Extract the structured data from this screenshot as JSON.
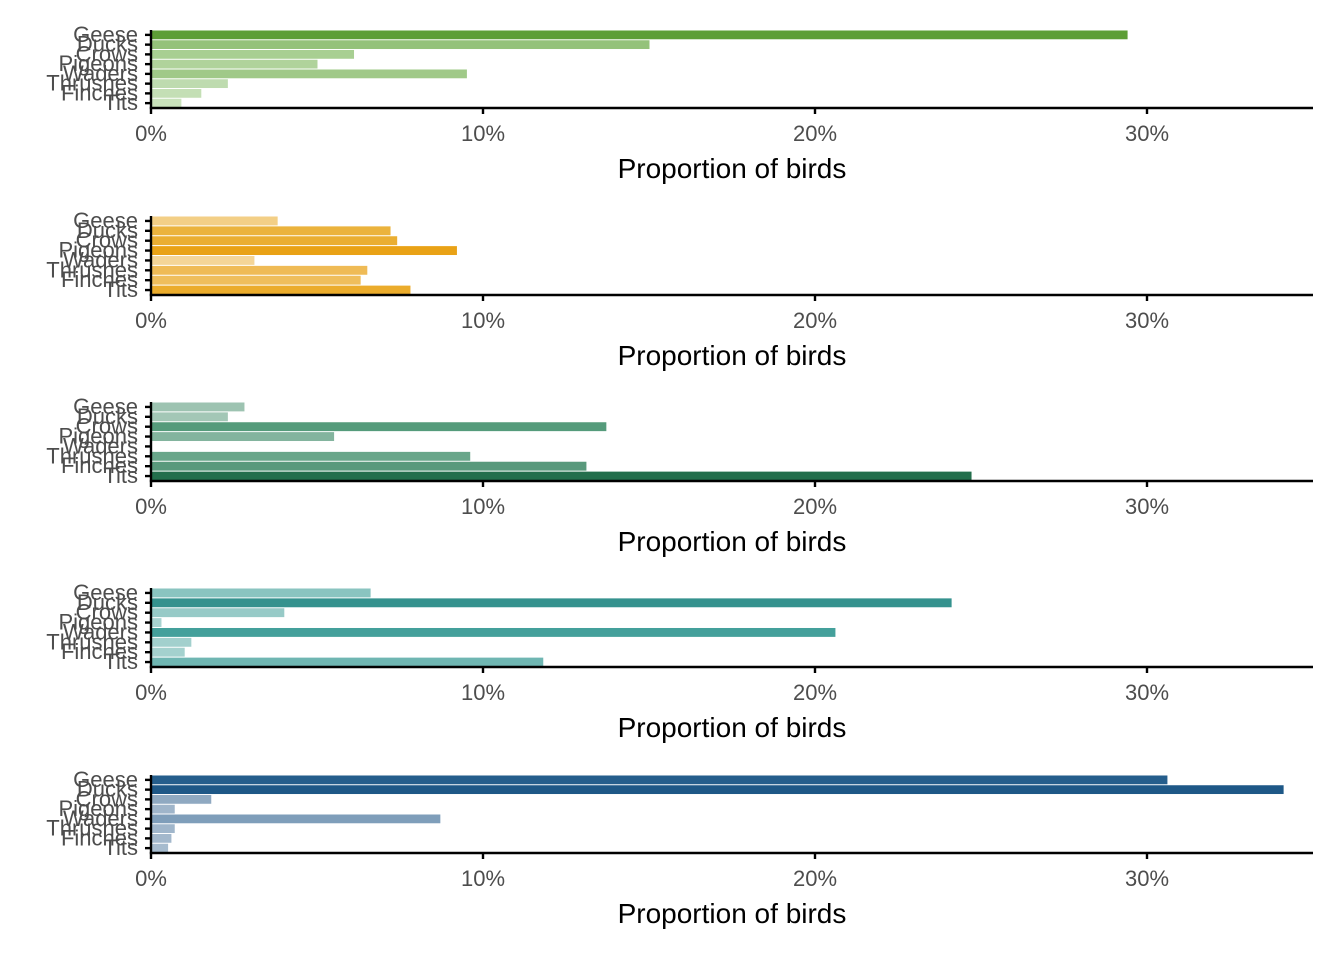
{
  "chart_data": [
    {
      "type": "bar",
      "orientation": "horizontal",
      "categories": [
        "Geese",
        "Ducks",
        "Crows",
        "Pigeons",
        "Waders",
        "Thrushes",
        "Finches",
        "Tits"
      ],
      "values": [
        29.4,
        15.0,
        6.1,
        5.0,
        9.5,
        2.3,
        1.5,
        0.9
      ],
      "colors": [
        "#5d9e36",
        "#94c27a",
        "#a8cf92",
        "#b0d39b",
        "#a0c988",
        "#bedbaf",
        "#c4dfb5",
        "#c9e2bb"
      ],
      "xlabel": "Proportion of birds",
      "xticks": [
        "0%",
        "10%",
        "20%",
        "30%"
      ],
      "xlim": [
        0,
        35
      ],
      "unit": "%"
    },
    {
      "type": "bar",
      "orientation": "horizontal",
      "categories": [
        "Geese",
        "Ducks",
        "Crows",
        "Pigeons",
        "Waders",
        "Thrushes",
        "Finches",
        "Tits"
      ],
      "values": [
        3.8,
        7.2,
        7.4,
        9.2,
        3.1,
        6.5,
        6.3,
        7.8
      ],
      "colors": [
        "#f3cf86",
        "#ebb33d",
        "#eaae32",
        "#e9a216",
        "#f4d597",
        "#efbb56",
        "#efbe5c",
        "#ebac2c"
      ],
      "xlabel": "Proportion of birds",
      "xticks": [
        "0%",
        "10%",
        "20%",
        "30%"
      ],
      "xlim": [
        0,
        35
      ],
      "unit": "%"
    },
    {
      "type": "bar",
      "orientation": "horizontal",
      "categories": [
        "Geese",
        "Ducks",
        "Crows",
        "Pigeons",
        "Waders",
        "Thrushes",
        "Finches",
        "Tits"
      ],
      "values": [
        2.8,
        2.3,
        13.7,
        5.5,
        0.0,
        9.6,
        13.1,
        24.7
      ],
      "colors": [
        "#9dc3b1",
        "#a3c7b6",
        "#559b7b",
        "#83b49e",
        "#b5d2c5",
        "#69a68a",
        "#59997c",
        "#236e4c"
      ],
      "xlabel": "Proportion of birds",
      "xticks": [
        "0%",
        "10%",
        "20%",
        "30%"
      ],
      "xlim": [
        0,
        35
      ],
      "unit": "%"
    },
    {
      "type": "bar",
      "orientation": "horizontal",
      "categories": [
        "Geese",
        "Ducks",
        "Crows",
        "Pigeons",
        "Waders",
        "Thrushes",
        "Finches",
        "Tits"
      ],
      "values": [
        6.6,
        24.1,
        4.0,
        0.3,
        20.6,
        1.2,
        1.0,
        11.8
      ],
      "colors": [
        "#8ac4c0",
        "#35928e",
        "#97cac7",
        "#a8d3d0",
        "#44a09b",
        "#a2d0cd",
        "#a4d1ce",
        "#6fb6b2"
      ],
      "xlabel": "Proportion of birds",
      "xticks": [
        "0%",
        "10%",
        "20%",
        "30%"
      ],
      "xlim": [
        0,
        35
      ],
      "unit": "%"
    },
    {
      "type": "bar",
      "orientation": "horizontal",
      "categories": [
        "Geese",
        "Ducks",
        "Crows",
        "Pigeons",
        "Waders",
        "Thrushes",
        "Finches",
        "Tits"
      ],
      "values": [
        30.6,
        34.1,
        1.8,
        0.7,
        8.7,
        0.7,
        0.6,
        0.5
      ],
      "colors": [
        "#255e8c",
        "#1e5887",
        "#8fa9c1",
        "#9fb5ca",
        "#7f9eba",
        "#a0b6cb",
        "#a3b8cc",
        "#a6bbce"
      ],
      "xlabel": "Proportion of birds",
      "xticks": [
        "0%",
        "10%",
        "20%",
        "30%"
      ],
      "xlim": [
        0,
        35
      ],
      "unit": "%"
    }
  ]
}
